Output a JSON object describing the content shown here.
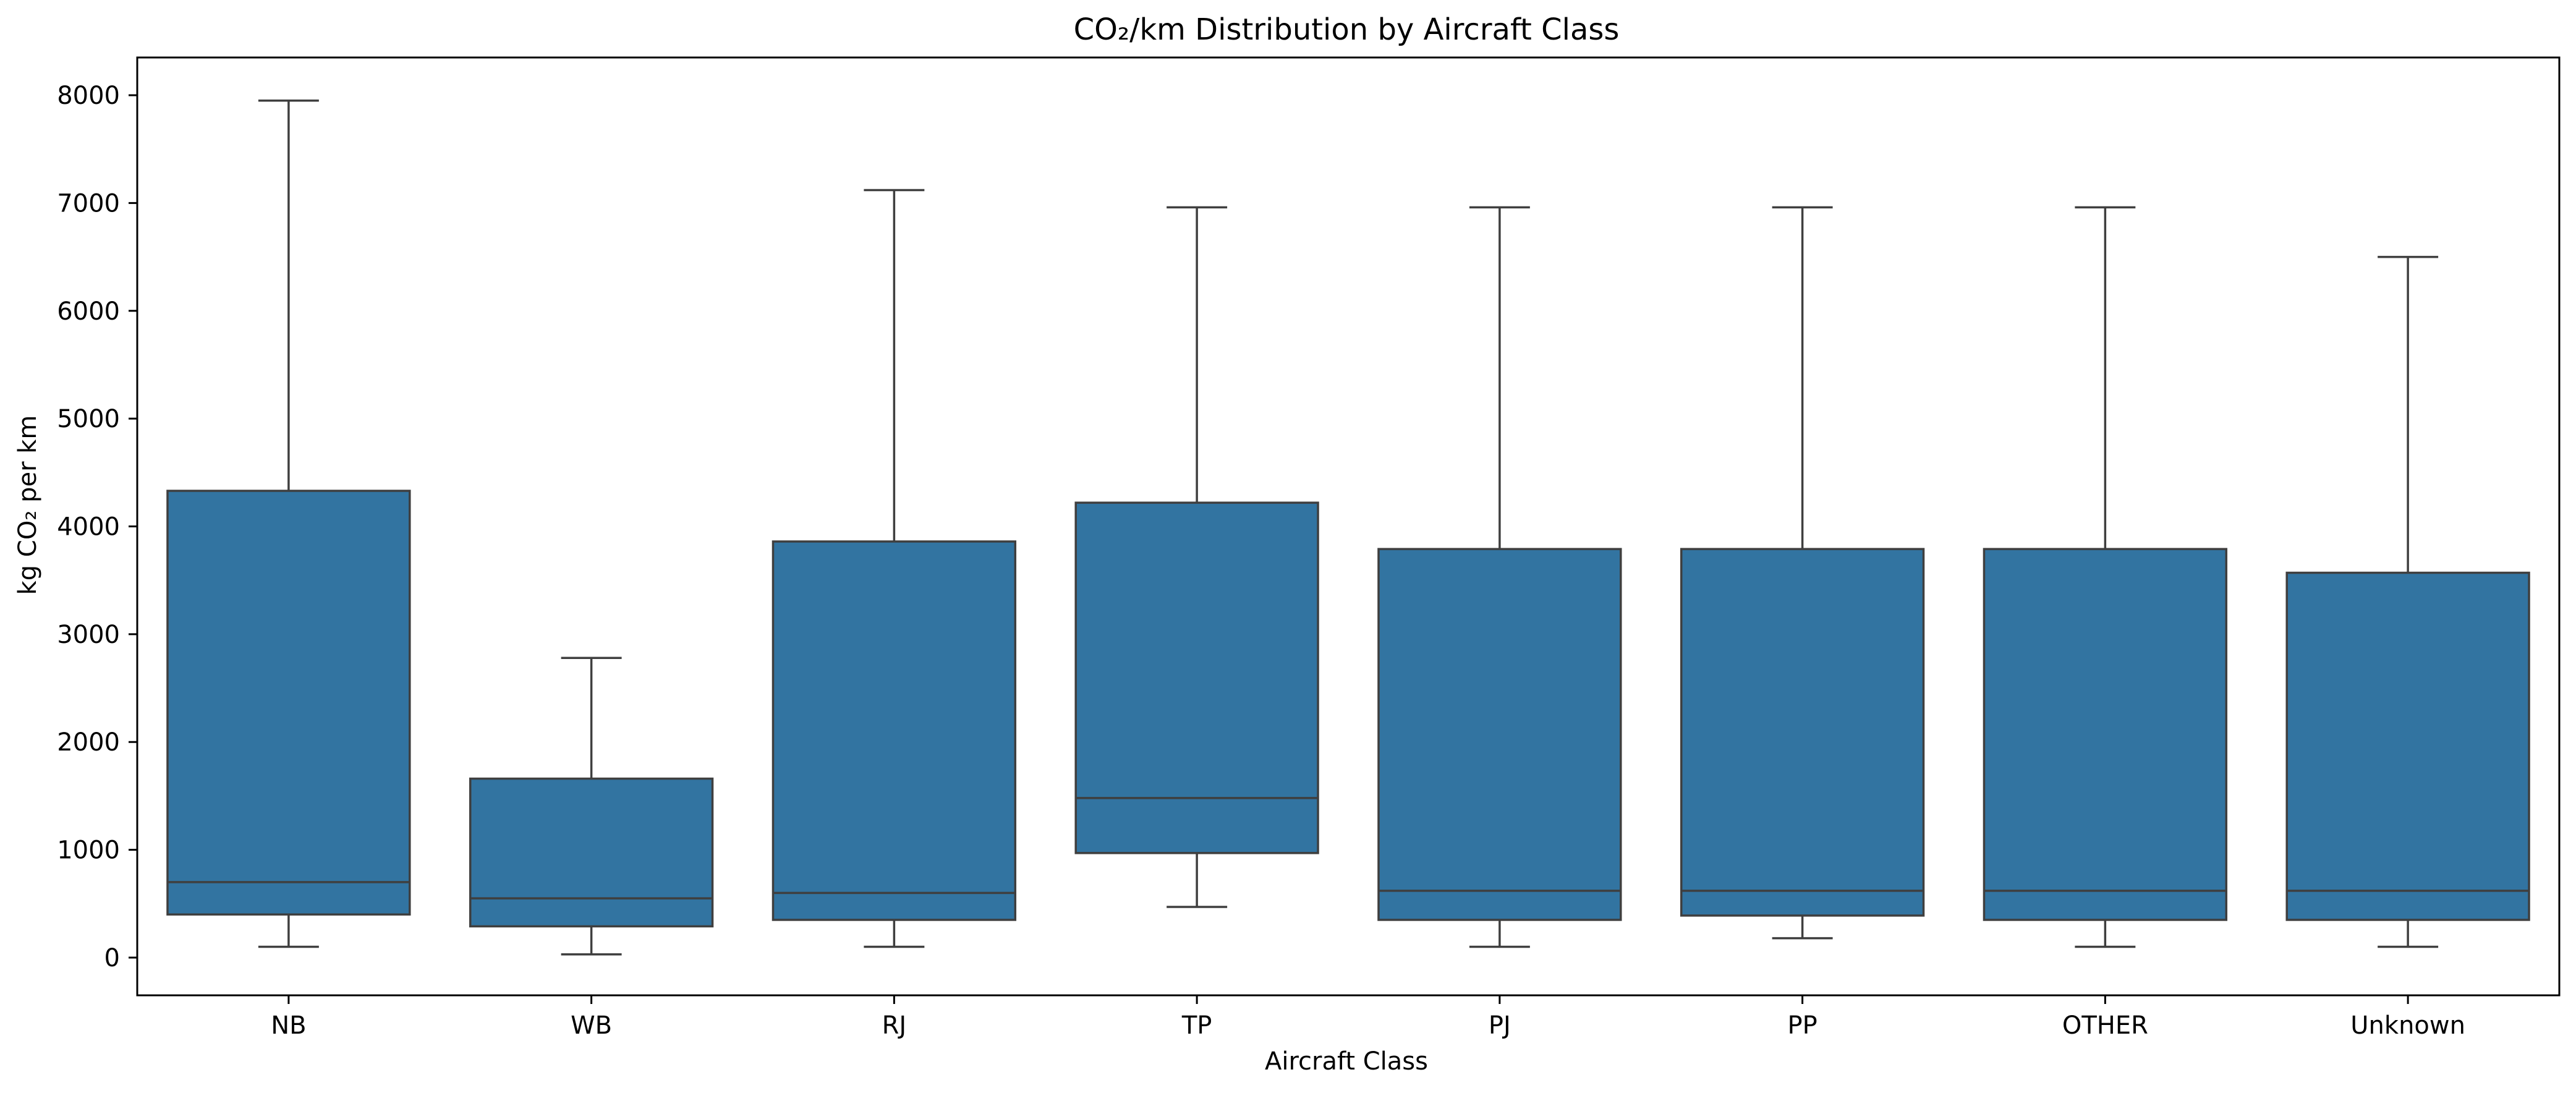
{
  "chart_data": {
    "type": "box",
    "title": "CO₂/km Distribution by Aircraft Class",
    "xlabel": "Aircraft Class",
    "ylabel": "kg CO₂ per km",
    "ylim": [
      -350,
      8350
    ],
    "yticks": [
      0,
      1000,
      2000,
      3000,
      4000,
      5000,
      6000,
      7000,
      8000
    ],
    "grid": false,
    "color": "#3274a1",
    "edge_color": "#3f3f3f",
    "categories": [
      "NB",
      "WB",
      "RJ",
      "TP",
      "PJ",
      "PP",
      "OTHER",
      "Unknown"
    ],
    "boxes": [
      {
        "category": "NB",
        "whisker_low": 100,
        "q1": 400,
        "median": 700,
        "q3": 4330,
        "whisker_high": 7950
      },
      {
        "category": "WB",
        "whisker_low": 30,
        "q1": 290,
        "median": 550,
        "q3": 1660,
        "whisker_high": 2780
      },
      {
        "category": "RJ",
        "whisker_low": 100,
        "q1": 350,
        "median": 600,
        "q3": 3860,
        "whisker_high": 7120
      },
      {
        "category": "TP",
        "whisker_low": 470,
        "q1": 970,
        "median": 1480,
        "q3": 4220,
        "whisker_high": 6960
      },
      {
        "category": "PJ",
        "whisker_low": 100,
        "q1": 350,
        "median": 620,
        "q3": 3790,
        "whisker_high": 6960
      },
      {
        "category": "PP",
        "whisker_low": 180,
        "q1": 390,
        "median": 620,
        "q3": 3790,
        "whisker_high": 6960
      },
      {
        "category": "OTHER",
        "whisker_low": 100,
        "q1": 350,
        "median": 620,
        "q3": 3790,
        "whisker_high": 6960
      },
      {
        "category": "Unknown",
        "whisker_low": 100,
        "q1": 350,
        "median": 620,
        "q3": 3570,
        "whisker_high": 6500
      }
    ]
  }
}
